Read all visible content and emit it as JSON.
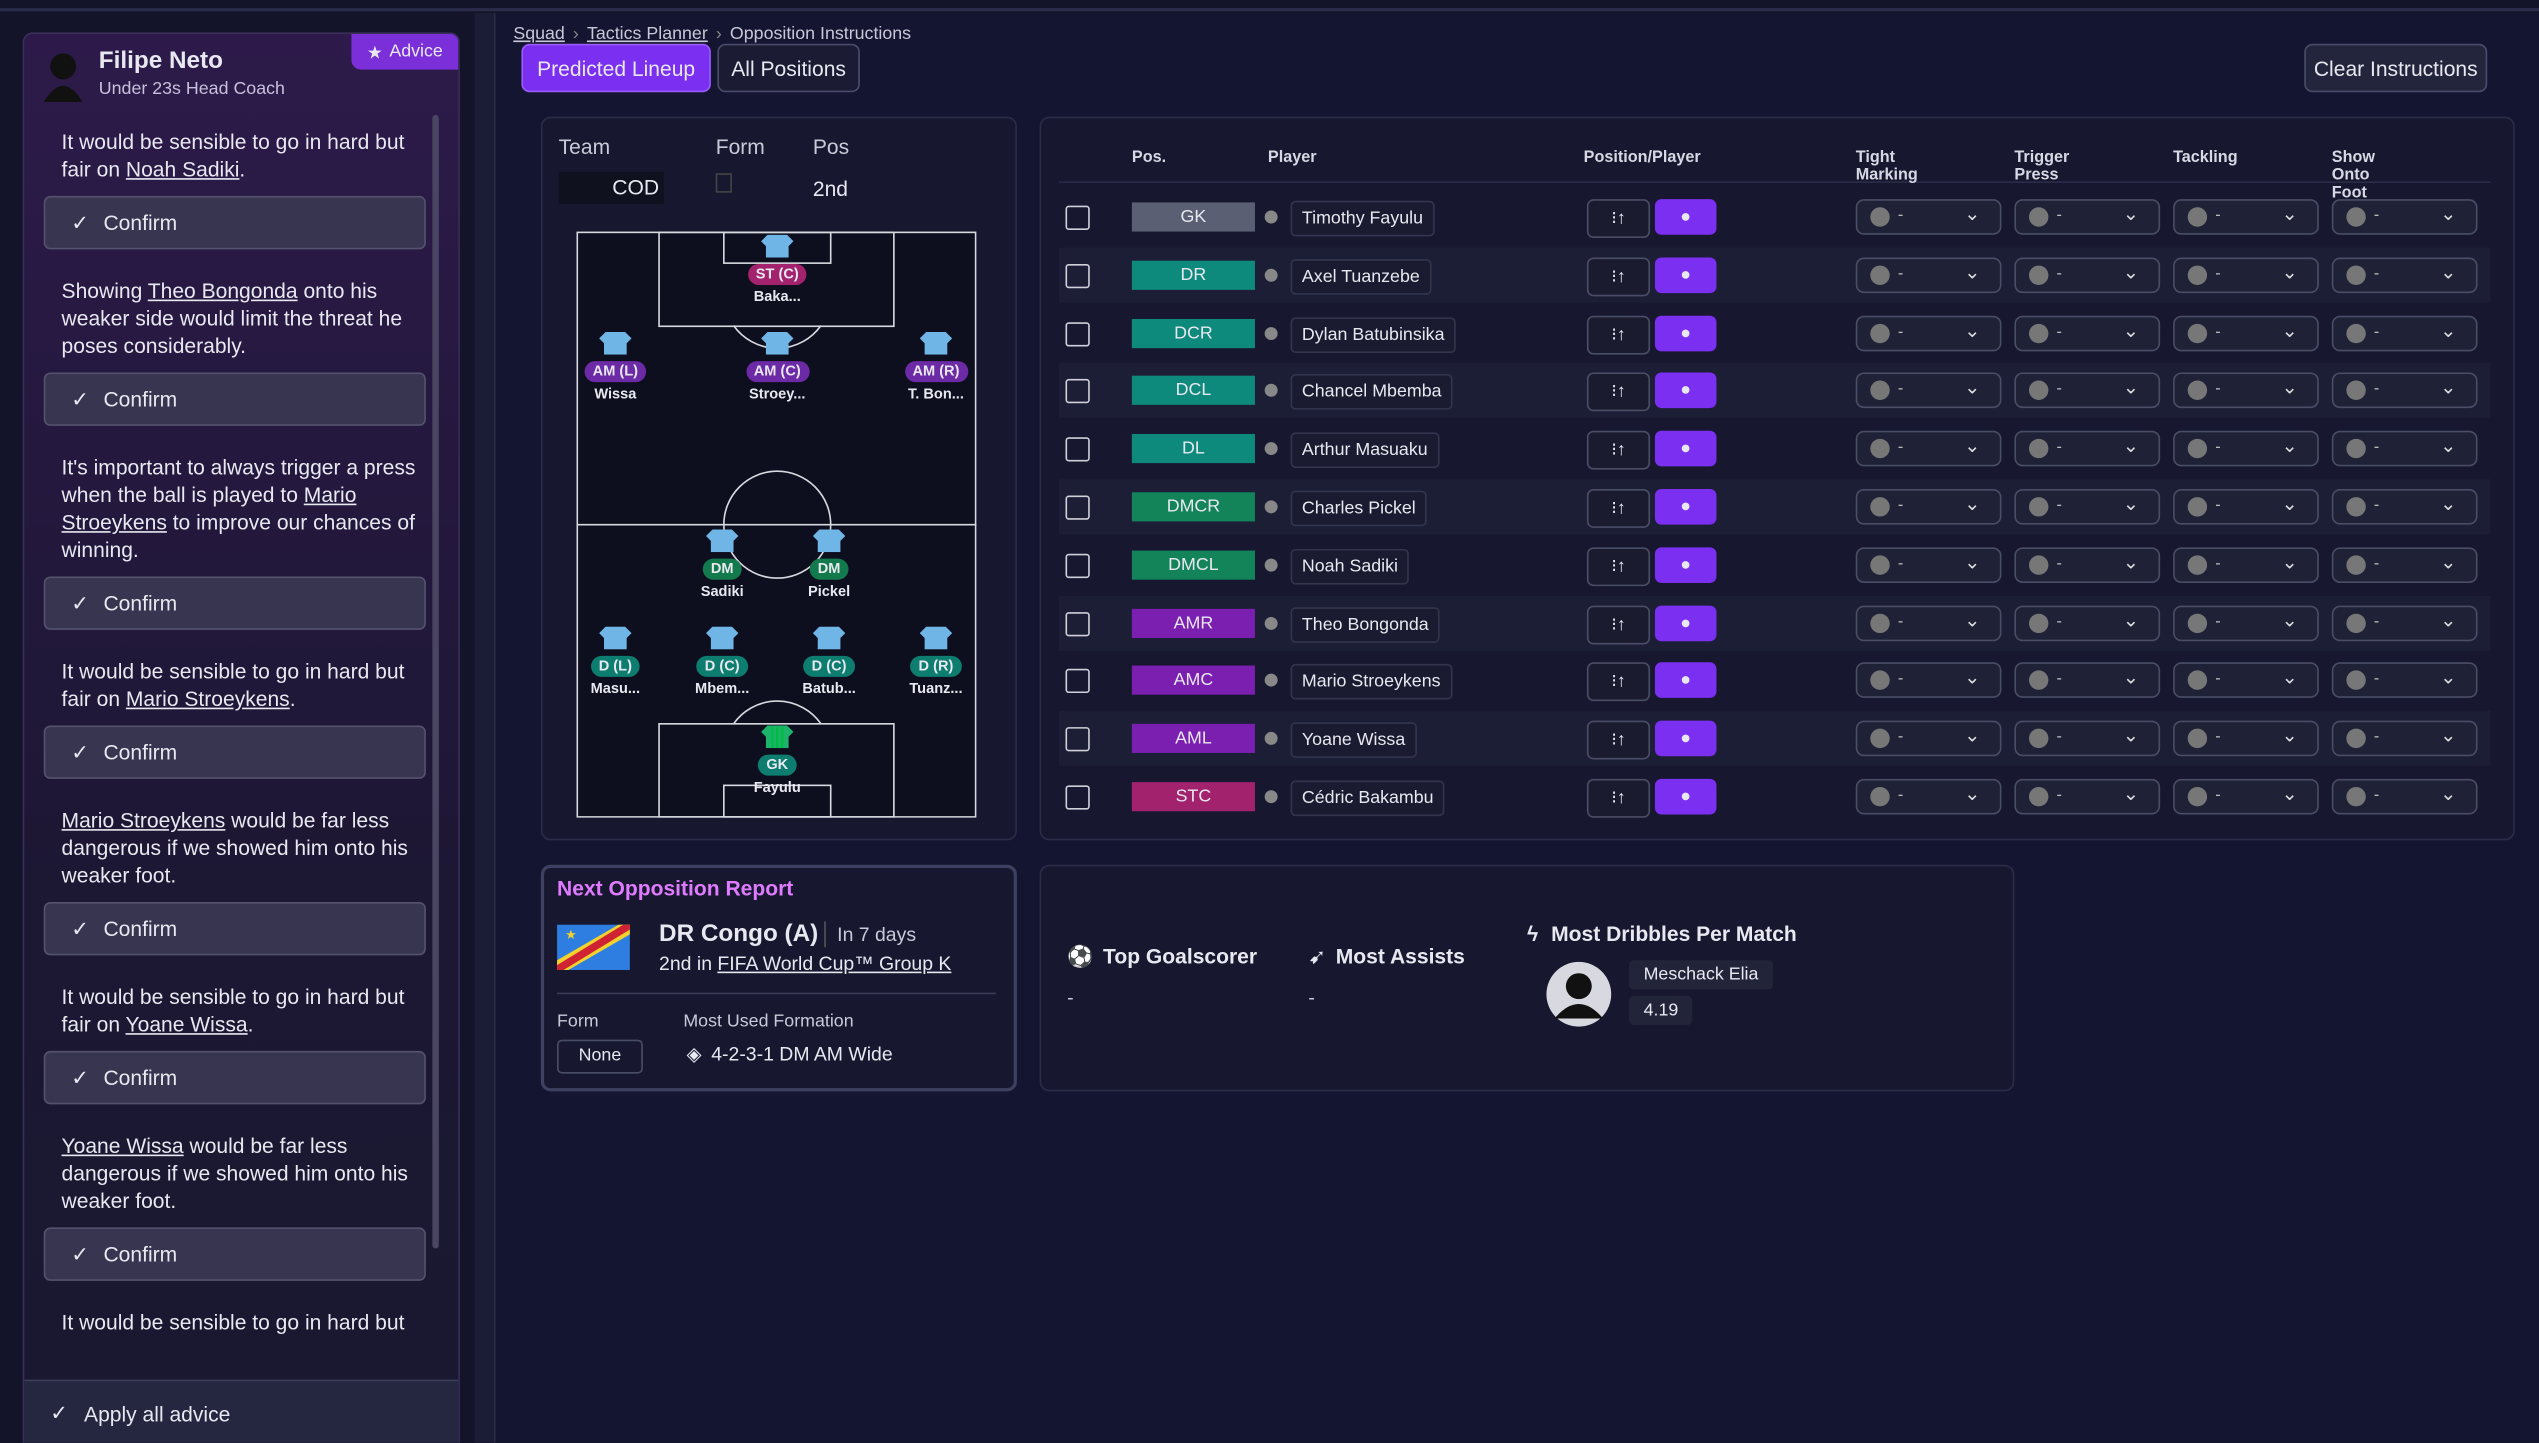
{
  "advisor": {
    "name": "Filipe Neto",
    "role": "Under 23s Head Coach",
    "badge": "Advice",
    "apply": "Apply all advice",
    "items": [
      {
        "before": "It would be sensible to go in hard but fair on ",
        "link": "Noah Sadiki",
        "after": ".",
        "button": "Confirm"
      },
      {
        "before": "Showing ",
        "link": "Theo Bongonda",
        "after": " onto his weaker side would limit the threat he poses considerably.",
        "button": "Confirm"
      },
      {
        "before": "It's important to always trigger a press when the ball is played to ",
        "link": "Mario Stroeykens",
        "after": " to improve our chances of winning.",
        "button": "Confirm"
      },
      {
        "before": "It would be sensible to go in hard but fair on ",
        "link": "Mario Stroeykens",
        "after": ".",
        "button": "Confirm"
      },
      {
        "link": "Mario Stroeykens",
        "after": " would be far less dangerous if we showed him onto his weaker foot.",
        "button": "Confirm"
      },
      {
        "before": "It would be sensible to go in hard but fair on ",
        "link": "Yoane Wissa",
        "after": ".",
        "button": "Confirm"
      },
      {
        "link": "Yoane Wissa",
        "after": " would be far less dangerous if we showed him onto his weaker foot.",
        "button": "Confirm"
      },
      {
        "before": "It would be sensible to go in hard but"
      }
    ]
  },
  "breadcrumb": [
    "Squad",
    "Tactics Planner",
    "Opposition Instructions"
  ],
  "tabs": [
    "Predicted Lineup",
    "All Positions"
  ],
  "clear": "Clear Instructions",
  "team_box": {
    "team_label": "Team",
    "team": "COD",
    "form_label": "Form",
    "pos_label": "Pos",
    "pos": "2nd"
  },
  "pitch": [
    {
      "pos": "ST (C)",
      "name": "Baka...",
      "color": "#a3226e"
    },
    {
      "pos": "AM (L)",
      "name": "Wissa",
      "color": "#6d2aa6"
    },
    {
      "pos": "AM (C)",
      "name": "Stroey...",
      "color": "#6d2aa6"
    },
    {
      "pos": "AM (R)",
      "name": "T. Bon...",
      "color": "#6d2aa6"
    },
    {
      "pos": "DM",
      "name": "Sadiki",
      "color": "#137a4d"
    },
    {
      "pos": "DM",
      "name": "Pickel",
      "color": "#137a4d"
    },
    {
      "pos": "D (L)",
      "name": "Masu...",
      "color": "#0d7d70"
    },
    {
      "pos": "D (C)",
      "name": "Mbem...",
      "color": "#0d7d70"
    },
    {
      "pos": "D (C)",
      "name": "Batub...",
      "color": "#0d7d70"
    },
    {
      "pos": "D (R)",
      "name": "Tuanz...",
      "color": "#0d7d70"
    },
    {
      "pos": "GK",
      "name": "Fayulu",
      "color": "#0d7d70"
    }
  ],
  "table": {
    "columns": [
      "Pos.",
      "Player",
      "Position/Player",
      "Tight Marking",
      "Trigger Press",
      "Tackling",
      "Show Onto Foot"
    ],
    "rows": [
      {
        "pos": "GK",
        "player": "Timothy Fayulu",
        "color": "#5a5f73",
        "instructions": [
          "-",
          "-",
          "-",
          "-"
        ]
      },
      {
        "pos": "DR",
        "player": "Axel Tuanzebe",
        "color": "#0e8a7c",
        "instructions": [
          "-",
          "-",
          "-",
          "-"
        ]
      },
      {
        "pos": "DCR",
        "player": "Dylan Batubinsika",
        "color": "#0e8a7c",
        "instructions": [
          "-",
          "-",
          "-",
          "-"
        ]
      },
      {
        "pos": "DCL",
        "player": "Chancel Mbemba",
        "color": "#0e8a7c",
        "instructions": [
          "-",
          "-",
          "-",
          "-"
        ]
      },
      {
        "pos": "DL",
        "player": "Arthur Masuaku",
        "color": "#0e8a7c",
        "instructions": [
          "-",
          "-",
          "-",
          "-"
        ]
      },
      {
        "pos": "DMCR",
        "player": "Charles Pickel",
        "color": "#13845a",
        "instructions": [
          "-",
          "-",
          "-",
          "-"
        ]
      },
      {
        "pos": "DMCL",
        "player": "Noah Sadiki",
        "color": "#13845a",
        "instructions": [
          "-",
          "-",
          "-",
          "-"
        ]
      },
      {
        "pos": "AMR",
        "player": "Theo Bongonda",
        "color": "#7a1fb0",
        "instructions": [
          "-",
          "-",
          "-",
          "-"
        ]
      },
      {
        "pos": "AMC",
        "player": "Mario Stroeykens",
        "color": "#7a1fb0",
        "instructions": [
          "-",
          "-",
          "-",
          "-"
        ]
      },
      {
        "pos": "AML",
        "player": "Yoane Wissa",
        "color": "#7a1fb0",
        "instructions": [
          "-",
          "-",
          "-",
          "-"
        ]
      },
      {
        "pos": "STC",
        "player": "Cédric Bakambu",
        "color": "#a3226e",
        "instructions": [
          "-",
          "-",
          "-",
          "-"
        ]
      }
    ]
  },
  "report": {
    "title": "Next Opposition Report",
    "team": "DR Congo (A)",
    "when": "In 7 days",
    "standing": "2nd in ",
    "group": "FIFA World Cup™ Group K",
    "form_label": "Form",
    "form": "None",
    "formation_label": "Most Used Formation",
    "formation": "4-2-3-1 DM AM Wide"
  },
  "stats": {
    "top_scorer": "Top Goalscorer",
    "top_scorer_value": "-",
    "assists": "Most Assists",
    "assists_value": "-",
    "dribbles": "Most Dribbles Per Match",
    "dribbles_player": "Meschack Elia",
    "dribbles_value": "4.19"
  }
}
